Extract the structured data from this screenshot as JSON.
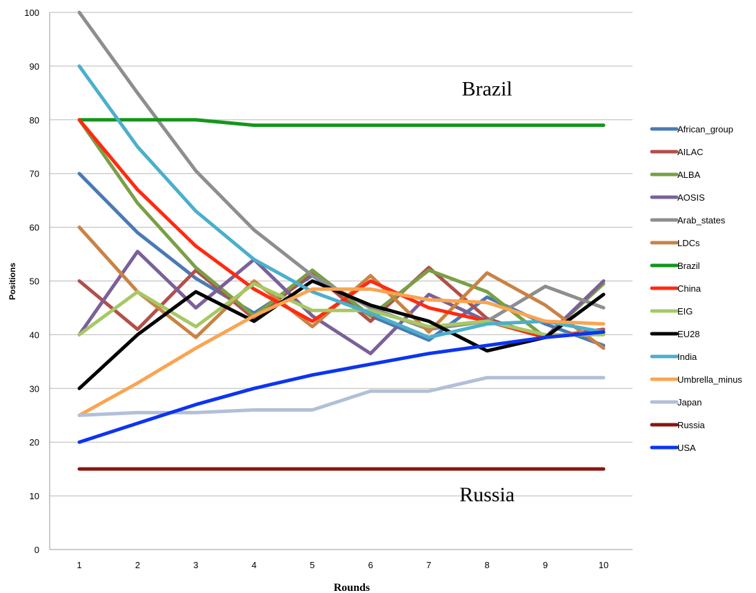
{
  "chart_data": {
    "type": "line",
    "title": "",
    "xlabel": "Rounds",
    "ylabel": "Positions",
    "x": [
      1,
      2,
      3,
      4,
      5,
      6,
      7,
      8,
      9,
      10
    ],
    "ylim": [
      0,
      100
    ],
    "yticks": [
      0,
      10,
      20,
      30,
      40,
      50,
      60,
      70,
      80,
      90,
      100
    ],
    "grid": true,
    "legend_position": "right",
    "series": [
      {
        "name": "African_group",
        "color": "#4a7ab3",
        "values": [
          70,
          59,
          50.5,
          44,
          51,
          43.5,
          39,
          47,
          42,
          38
        ]
      },
      {
        "name": "AILAC",
        "color": "#b24f4b",
        "values": [
          50,
          41,
          52,
          43,
          51.5,
          42.5,
          52.5,
          43,
          39.5,
          41
        ]
      },
      {
        "name": "ALBA",
        "color": "#7a9f46",
        "values": [
          80,
          64.5,
          52.5,
          43.5,
          52,
          43.5,
          52,
          48,
          39.5,
          49.5
        ]
      },
      {
        "name": "AOSIS",
        "color": "#7b6099",
        "values": [
          40,
          55.5,
          45,
          54,
          43.5,
          36.5,
          47.5,
          42.5,
          39.5,
          50
        ]
      },
      {
        "name": "Arab_states",
        "color": "#8e8e8e",
        "values": [
          100,
          85,
          70.5,
          59.5,
          51,
          45,
          41,
          42.5,
          49,
          45
        ]
      },
      {
        "name": "LDCs",
        "color": "#c98344",
        "values": [
          60,
          48,
          39.5,
          50,
          41.5,
          51,
          40.5,
          51.5,
          45.5,
          37.5
        ]
      },
      {
        "name": "Brazil",
        "color": "#13961b",
        "values": [
          80,
          80,
          80,
          79,
          79,
          79,
          79,
          79,
          79,
          79
        ]
      },
      {
        "name": "China",
        "color": "#ff2a10",
        "values": [
          80,
          67,
          56.5,
          48.5,
          42.5,
          50,
          45,
          42.5,
          39.5,
          40.5
        ]
      },
      {
        "name": "EIG",
        "color": "#a6c865",
        "values": [
          40,
          48,
          41.5,
          49.5,
          44.5,
          44.5,
          41.5,
          42.5,
          40,
          40
        ]
      },
      {
        "name": "EU28",
        "color": "#000000",
        "values": [
          30,
          40,
          48,
          42.5,
          50,
          45.5,
          42.5,
          37,
          39.5,
          47.5
        ]
      },
      {
        "name": "India",
        "color": "#4bafcb",
        "values": [
          90,
          75,
          63,
          54,
          48,
          44,
          39.5,
          42,
          42.5,
          40.5
        ]
      },
      {
        "name": "Umbrella_minus",
        "color": "#fba451",
        "values": [
          25,
          31,
          37.5,
          43.5,
          48.5,
          48.5,
          46.5,
          46,
          42.5,
          42
        ]
      },
      {
        "name": "Japan",
        "color": "#b2bfd8",
        "values": [
          25,
          25.5,
          25.5,
          26,
          26,
          29.5,
          29.5,
          32,
          32,
          32
        ]
      },
      {
        "name": "Russia",
        "color": "#8a150f",
        "values": [
          15,
          15,
          15,
          15,
          15,
          15,
          15,
          15,
          15,
          15
        ]
      },
      {
        "name": "USA",
        "color": "#0c34f2",
        "values": [
          20,
          23.5,
          27,
          30,
          32.5,
          34.5,
          36.5,
          38,
          39.5,
          40.5
        ]
      }
    ],
    "annotations": [
      {
        "text": "Brazil",
        "x": 8,
        "y": 84.5
      },
      {
        "text": "Russia",
        "x": 8,
        "y": 9
      }
    ]
  }
}
